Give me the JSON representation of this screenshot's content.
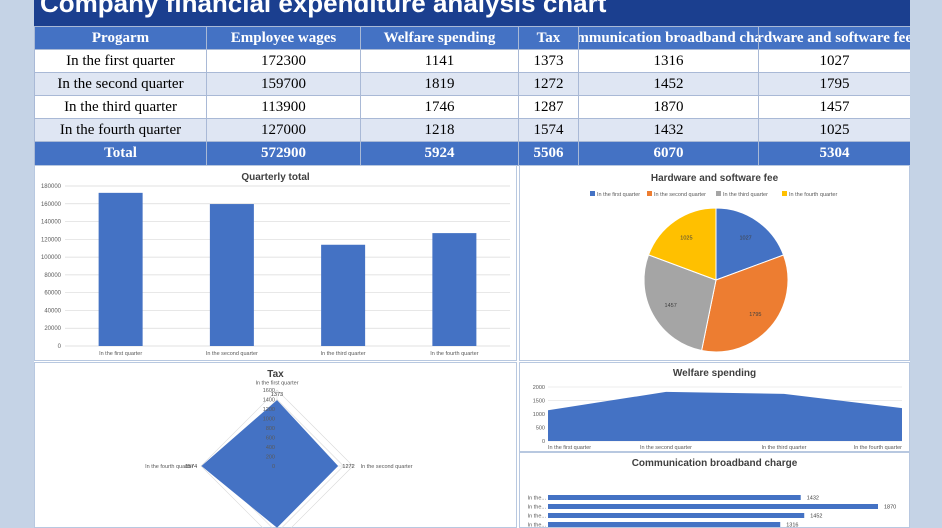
{
  "title": "Company financial expenditure analysis chart",
  "table": {
    "headers": [
      "Progarm",
      "Employee wages",
      "Welfare spending",
      "Tax",
      "Communication broadband charge",
      "Hardware and software fee"
    ],
    "rows": [
      {
        "label": "In the first quarter",
        "values": [
          "172300",
          "1141",
          "1373",
          "1316",
          "1027"
        ]
      },
      {
        "label": "In the second quarter",
        "values": [
          "159700",
          "1819",
          "1272",
          "1452",
          "1795"
        ]
      },
      {
        "label": "In the third quarter",
        "values": [
          "113900",
          "1746",
          "1287",
          "1870",
          "1457"
        ]
      },
      {
        "label": "In the fourth quarter",
        "values": [
          "127000",
          "1218",
          "1574",
          "1432",
          "1025"
        ]
      }
    ],
    "total": {
      "label": "Total",
      "values": [
        "572900",
        "5924",
        "5506",
        "6070",
        "5304"
      ]
    }
  },
  "colors": {
    "series_blue": "#4472c4",
    "orange": "#ed7d31",
    "gray": "#a5a5a5",
    "yellow": "#ffc000",
    "header_blue": "#1b3f8f"
  },
  "chart_data": [
    {
      "type": "bar",
      "title": "Quarterly total",
      "categories": [
        "In the first quarter",
        "In the second quarter",
        "In the third quarter",
        "In the fourth quarter"
      ],
      "values": [
        172300,
        159700,
        113900,
        127000
      ],
      "ylim": [
        0,
        180000
      ],
      "yticks": [
        0,
        20000,
        40000,
        60000,
        80000,
        100000,
        120000,
        140000,
        160000,
        180000
      ],
      "grid": true
    },
    {
      "type": "pie",
      "title": "Hardware and software fee",
      "categories": [
        "In the first quarter",
        "In the second quarter",
        "In the third quarter",
        "In the fourth quarter"
      ],
      "values": [
        1027,
        1795,
        1457,
        1025
      ],
      "legend": "top"
    },
    {
      "type": "radar",
      "title": "Tax",
      "categories": [
        "In the first quarter",
        "In the second quarter",
        "In the third quarter",
        "In the fourth quarter"
      ],
      "values": [
        1373,
        1272,
        1287,
        1574
      ],
      "rlim": [
        0,
        1600
      ],
      "rticks": [
        0,
        200,
        400,
        600,
        800,
        1000,
        1200,
        1400,
        1600
      ]
    },
    {
      "type": "area",
      "title": "Welfare spending",
      "categories": [
        "In the first quarter",
        "In the second quarter",
        "In the third quarter",
        "In the fourth quarter"
      ],
      "values": [
        1141,
        1819,
        1746,
        1218
      ],
      "ylim": [
        0,
        2000
      ],
      "yticks": [
        0,
        500,
        1000,
        1500,
        2000
      ],
      "grid": true
    },
    {
      "type": "bar",
      "orientation": "horizontal",
      "title": "Communication broadband charge",
      "categories": [
        "In the...",
        "In the...",
        "In the...",
        "In the..."
      ],
      "values": [
        1432,
        1870,
        1452,
        1316
      ]
    }
  ]
}
